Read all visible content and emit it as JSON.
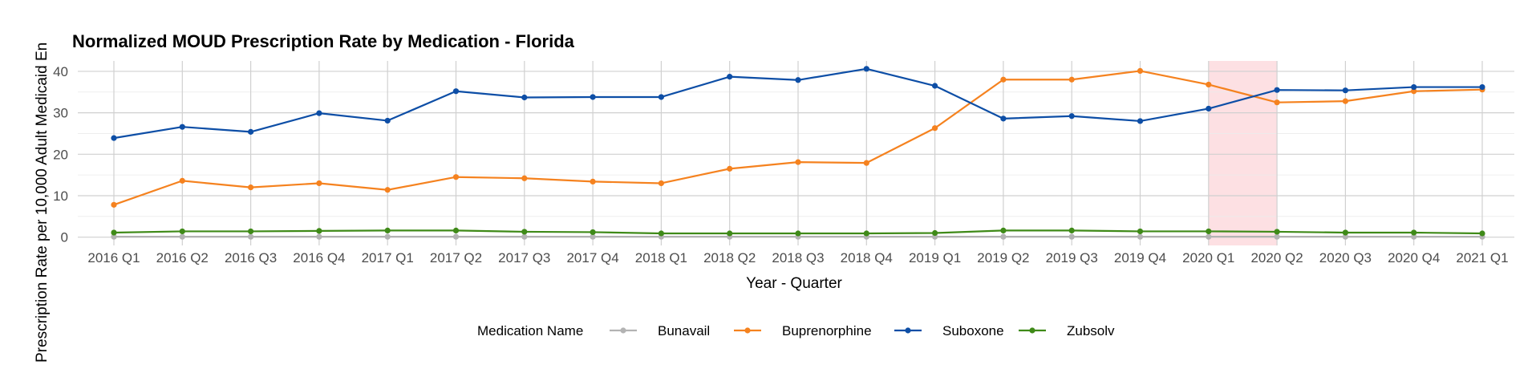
{
  "chart_data": {
    "type": "line",
    "title": "Normalized MOUD Prescription Rate by Medication - Florida",
    "xlabel": "Year - Quarter",
    "ylabel": "Prescription Rate per 10,000 Adult Medicaid En",
    "ylim": [
      -2,
      42.5
    ],
    "yticks": [
      0,
      10,
      20,
      30,
      40
    ],
    "grid": true,
    "categories": [
      "2016 Q1",
      "2016 Q2",
      "2016 Q3",
      "2016 Q4",
      "2017 Q1",
      "2017 Q2",
      "2017 Q3",
      "2017 Q4",
      "2018 Q1",
      "2018 Q2",
      "2018 Q3",
      "2018 Q4",
      "2019 Q1",
      "2019 Q2",
      "2019 Q3",
      "2019 Q4",
      "2020 Q1",
      "2020 Q2",
      "2020 Q3",
      "2020 Q4",
      "2021 Q1"
    ],
    "highlight": {
      "from": "2020 Q1",
      "to": "2020 Q2",
      "color": "#fde0e3"
    },
    "legend": {
      "title": "Medication Name",
      "position": "bottom"
    },
    "series": [
      {
        "name": "Bunavail",
        "color": "#b3b3b3",
        "values": [
          0.1,
          0.1,
          0.1,
          0.1,
          0.1,
          0.1,
          0.1,
          0.1,
          0.1,
          0.1,
          0.1,
          0.1,
          0.1,
          0.1,
          0.1,
          0.1,
          0.1,
          0.1,
          0.1,
          0.1,
          0.1
        ]
      },
      {
        "name": "Buprenorphine",
        "color": "#f5821f",
        "values": [
          7.8,
          13.6,
          12.0,
          13.0,
          11.4,
          14.5,
          14.2,
          13.4,
          13.0,
          16.5,
          18.1,
          17.9,
          26.3,
          38.0,
          38.0,
          40.1,
          36.8,
          32.5,
          32.8,
          35.2,
          35.6
        ]
      },
      {
        "name": "Suboxone",
        "color": "#0d4ea6",
        "values": [
          23.9,
          26.6,
          25.4,
          29.9,
          28.1,
          35.2,
          33.7,
          33.8,
          33.8,
          38.7,
          37.9,
          40.6,
          36.5,
          28.6,
          29.2,
          28.0,
          31.0,
          35.5,
          35.4,
          36.2,
          36.2
        ]
      },
      {
        "name": "Zubsolv",
        "color": "#3f8a18",
        "values": [
          1.1,
          1.4,
          1.4,
          1.5,
          1.6,
          1.6,
          1.3,
          1.2,
          0.9,
          0.9,
          0.9,
          0.9,
          1.0,
          1.6,
          1.6,
          1.4,
          1.4,
          1.3,
          1.1,
          1.1,
          0.9
        ]
      }
    ]
  }
}
